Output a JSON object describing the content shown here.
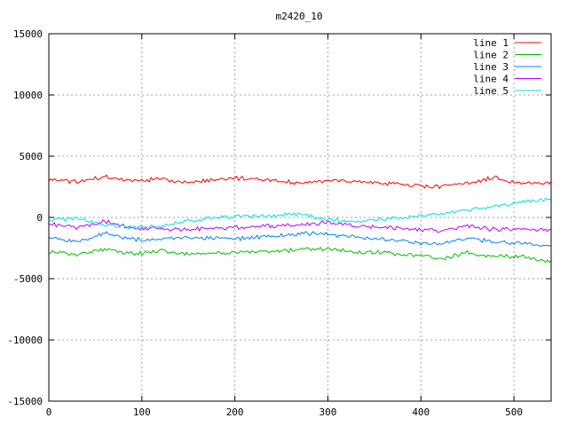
{
  "chart_data": {
    "type": "line",
    "title": "m2420_10",
    "xlabel": "",
    "ylabel": "",
    "xlim": [
      0,
      540
    ],
    "ylim": [
      -15000,
      15000
    ],
    "x_ticks": [
      0,
      100,
      200,
      300,
      400,
      500
    ],
    "y_ticks": [
      -15000,
      -10000,
      -5000,
      0,
      5000,
      10000,
      15000
    ],
    "grid": true,
    "legend_position": "top-right",
    "x_step": 30,
    "series": [
      {
        "name": "line 1",
        "color": "#ff0000",
        "values": [
          3100,
          2900,
          3300,
          3000,
          3100,
          2900,
          3100,
          3200,
          3000,
          2800,
          3000,
          2950,
          2800,
          2600,
          2500,
          2800,
          3300,
          2700,
          2900
        ]
      },
      {
        "name": "line 2",
        "color": "#00c000",
        "values": [
          -2800,
          -3000,
          -2600,
          -3000,
          -2700,
          -3000,
          -2900,
          -2800,
          -2800,
          -2600,
          -2600,
          -2800,
          -2900,
          -3000,
          -3400,
          -2900,
          -3200,
          -3200,
          -3600
        ]
      },
      {
        "name": "line 3",
        "color": "#0080ff",
        "values": [
          -1600,
          -2000,
          -1300,
          -1800,
          -1800,
          -1700,
          -1700,
          -1700,
          -1500,
          -1300,
          -1400,
          -1600,
          -1800,
          -2000,
          -2200,
          -1700,
          -2000,
          -2100,
          -2400
        ]
      },
      {
        "name": "line 4",
        "color": "#c000ff",
        "values": [
          -500,
          -900,
          -300,
          -900,
          -900,
          -1000,
          -900,
          -800,
          -700,
          -600,
          -400,
          -700,
          -800,
          -900,
          -1100,
          -700,
          -1000,
          -900,
          -1100
        ]
      },
      {
        "name": "line 5",
        "color": "#00e0e0",
        "values": [
          -200,
          -100,
          -600,
          -800,
          -700,
          -300,
          0,
          100,
          100,
          300,
          -200,
          -300,
          -100,
          0,
          300,
          600,
          900,
          1300,
          1500
        ]
      }
    ]
  }
}
